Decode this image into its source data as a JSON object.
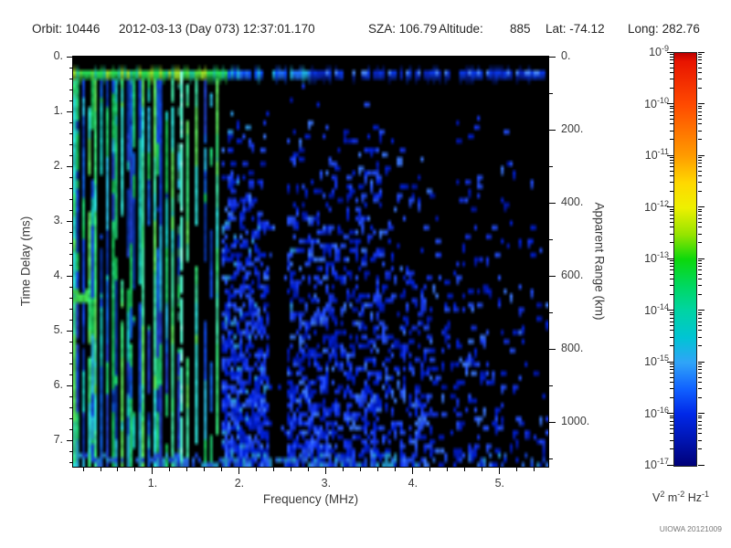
{
  "header": {
    "orbit_label": "Orbit:",
    "orbit_value": "10446",
    "datetime": "2012-03-13 (Day 073) 12:37:01.170",
    "sza_label": "SZA:",
    "sza_value": "106.79",
    "altitude_label": "Altitude:",
    "altitude_value": "885",
    "lat_label": "Lat:",
    "lat_value": "-74.12",
    "long_label": "Long:",
    "long_value": "282.76"
  },
  "footer": {
    "credit": "UIOWA 20121009"
  },
  "chart_data": {
    "type": "heatmap",
    "subtype": "radar-sounder-ionogram-spectrogram",
    "plot_bg": "#000000",
    "x_axis": {
      "label": "Frequency (MHz)",
      "min": 0.084,
      "max": 5.56,
      "major_ticks": [
        1,
        2,
        3,
        4,
        5
      ],
      "major_tick_labels": [
        "1.",
        "2.",
        "3.",
        "4.",
        "5."
      ],
      "minor_tick_step": 0.2
    },
    "y_axis": {
      "label": "Time Delay (ms)",
      "min": 0,
      "max": 7.48,
      "direction": "down",
      "major_ticks": [
        0,
        1,
        2,
        3,
        4,
        5,
        6,
        7
      ],
      "major_tick_labels": [
        "0.",
        "1.",
        "2.",
        "3.",
        "4.",
        "5.",
        "6.",
        "7."
      ],
      "minor_tick_step": 0.2
    },
    "y2_axis": {
      "label": "Apparent Range (km)",
      "min": 0,
      "max": 1122,
      "major_ticks": [
        0,
        200,
        400,
        600,
        800,
        1000
      ],
      "major_tick_labels": [
        "0.",
        "200.",
        "400.",
        "600.",
        "800.",
        "1000."
      ],
      "minor_tick_step": 100,
      "relation": "range_km = 150 x delay_ms"
    },
    "colorbar": {
      "scale": "log",
      "min": "1e-17",
      "max": "1e-9",
      "tick_label_base": "10",
      "tick_label_exponents": [
        "-9",
        "-10",
        "-11",
        "-12",
        "-13",
        "-14",
        "-15",
        "-16",
        "-17"
      ],
      "unit_parts": [
        [
          "V",
          "2"
        ],
        [
          "m",
          "-2"
        ],
        [
          "Hz",
          "-1"
        ]
      ],
      "gradient_stops": [
        [
          "0",
          "#bb0000"
        ],
        [
          "0.02",
          "#e81400"
        ],
        [
          "0.125",
          "#ff4a00"
        ],
        [
          "0.25",
          "#ff9c00"
        ],
        [
          "0.315",
          "#ffd800"
        ],
        [
          "0.375",
          "#eef000"
        ],
        [
          "0.44",
          "#96e400"
        ],
        [
          "0.5",
          "#0cd80c"
        ],
        [
          "0.565",
          "#00d862"
        ],
        [
          "0.625",
          "#00d4a4"
        ],
        [
          "0.69",
          "#00c4d4"
        ],
        [
          "0.75",
          "#30a4f8"
        ],
        [
          "0.815",
          "#1060ff"
        ],
        [
          "0.875",
          "#0028e8"
        ],
        [
          "0.94",
          "#0014b0"
        ],
        [
          "1",
          "#000078"
        ]
      ]
    },
    "features": {
      "seed": 104460,
      "description": "Strong horizontal ionospheric echo band at ~0.2-0.4 ms across all frequencies; dense vertical electron-plasma-oscillation harmonic stripes below ~1.8 MHz; bright cyan line near 1.3 MHz; diffuse blue scatter whose density grows with time delay and falls with frequency; quiet column near 2.4 MHz; noisy bottom edge.",
      "echo_band": {
        "t_range_ms": [
          0.2,
          0.42
        ],
        "left_max_mhz": 1.85,
        "mid_max_mhz": 2.8,
        "gap_prob_right": 0.17,
        "palettes": {
          "left": [
            "#28e058",
            "#5ce03c",
            "#a0e22c",
            "#20cc96"
          ],
          "mid": [
            "#20b4e8",
            "#2274ff",
            "#0a4cff"
          ],
          "right": [
            "#0a38e8",
            "#0826c0"
          ],
          "core": "#4c8cff"
        }
      },
      "harmonic_stripes": {
        "f_range_mhz": [
          0.084,
          1.78
        ],
        "t_start_ms": 0.42,
        "palette": [
          "#18c858",
          "#20d878",
          "#18c8c0",
          "#28b8e0",
          "#1048e8",
          "#2040cc",
          "#0830a0",
          "#1060e0"
        ],
        "bright_palette": [
          "#38f080",
          "#40e8a8",
          "#30e8e0",
          "#60f060"
        ],
        "bright_prob": 0.18,
        "gap_prob": 0.14
      },
      "bright_line": {
        "f_mhz": 1.3,
        "color": "#50f0c8",
        "core": "#8cffe4"
      },
      "quiet_column": {
        "f_range_mhz": [
          2.33,
          2.5
        ],
        "keep_prob": 0.08
      },
      "speckle_field": {
        "f_start_mhz": 1.78,
        "colors": [
          "#0018b8",
          "#0020d8",
          "#1434ec",
          "#2450ff"
        ],
        "bright": "#3c78ff",
        "cyan": "#2c94e0",
        "cyan_max_mhz": 2.6
      },
      "bottom_noise": {
        "t_start_ms": 7.2,
        "f_max_mhz": 3.8,
        "colors": [
          "#1848e8",
          "#2c70f0",
          "#28a0d8"
        ]
      },
      "left_edge_patch": {
        "t_ms": 4.3,
        "color": "#44e854"
      }
    }
  }
}
